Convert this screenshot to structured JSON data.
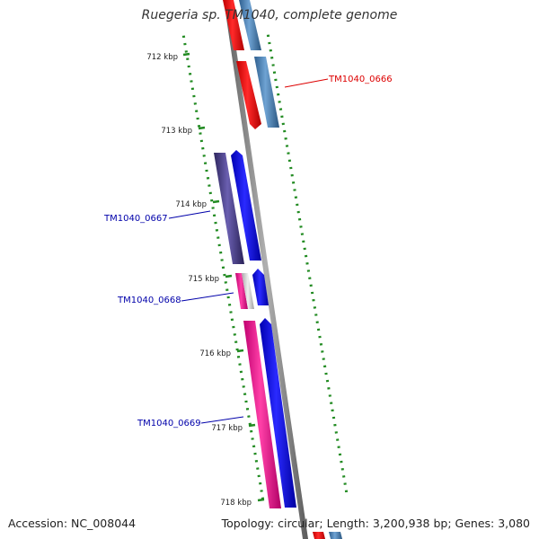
{
  "title": "Ruegeria sp. TM1040, complete genome",
  "accession": "Accession: NC_008044",
  "summary": "Topology: circular; Length: 3,200,938 bp; Genes: 3,080",
  "scale": {
    "unit": "kbp",
    "labels": [
      "712 kbp",
      "713 kbp",
      "714 kbp",
      "715 kbp",
      "716 kbp",
      "717 kbp",
      "718 kbp"
    ]
  },
  "genes": [
    {
      "id": "TM1040_0666",
      "label": "TM1040_0666",
      "label_color": "#dd0000",
      "strand": "forward",
      "cds_color": "#ee0000",
      "gene_color": "#4682b4"
    },
    {
      "id": "TM1040_0667",
      "label": "TM1040_0667",
      "label_color": "#0000aa",
      "strand": "reverse",
      "cds_color": "#0000ee",
      "gene_color": "#483d8b"
    },
    {
      "id": "TM1040_0668",
      "label": "TM1040_0668",
      "label_color": "#0000aa",
      "strand": "reverse",
      "cds_color": "#0000ee",
      "gene_color": "#ff1493"
    },
    {
      "id": "TM1040_0669",
      "label": "TM1040_0669",
      "label_color": "#0000aa",
      "strand": "reverse",
      "cds_color": "#0000ee",
      "gene_color": "#ff1493"
    }
  ],
  "colors": {
    "backbone": "#7a7a7a",
    "ticks": "#228b22",
    "tick_label": "#222222"
  }
}
